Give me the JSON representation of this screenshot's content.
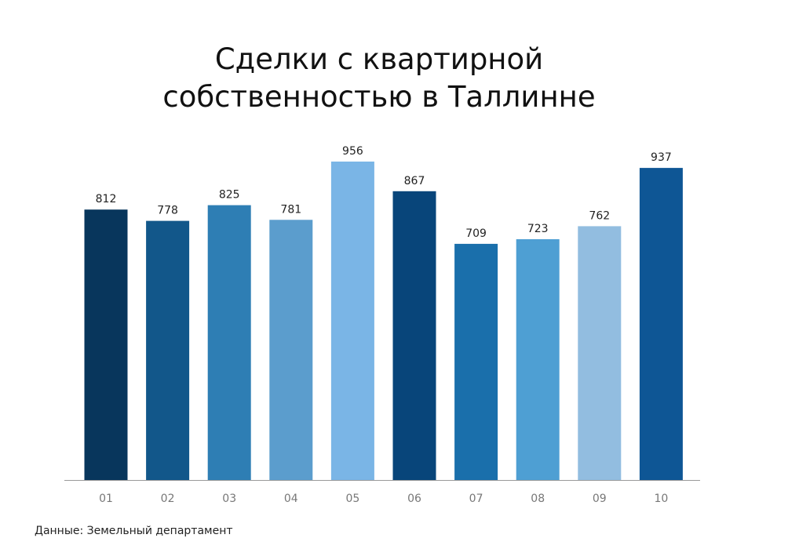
{
  "chart_data": {
    "type": "bar",
    "title_line1": "Сделки с квартирной",
    "title_line2": "собственностью в Таллинне",
    "categories": [
      "01",
      "02",
      "03",
      "04",
      "05",
      "06",
      "07",
      "08",
      "09",
      "10"
    ],
    "values": [
      812,
      778,
      825,
      781,
      956,
      867,
      709,
      723,
      762,
      937
    ],
    "value_labels": [
      "812",
      "778",
      "825",
      "781",
      "956",
      "867",
      "709",
      "723",
      "762",
      "937"
    ],
    "colors": [
      "#08365c",
      "#12578a",
      "#2e7eb4",
      "#5b9dcd",
      "#7ab5e6",
      "#08457a",
      "#1a6fab",
      "#4e9fd3",
      "#92bde0",
      "#0e5695"
    ],
    "ylim": [
      0,
      956
    ],
    "grid": false,
    "legend": "none",
    "source": "Данные: Земельный департамент"
  }
}
